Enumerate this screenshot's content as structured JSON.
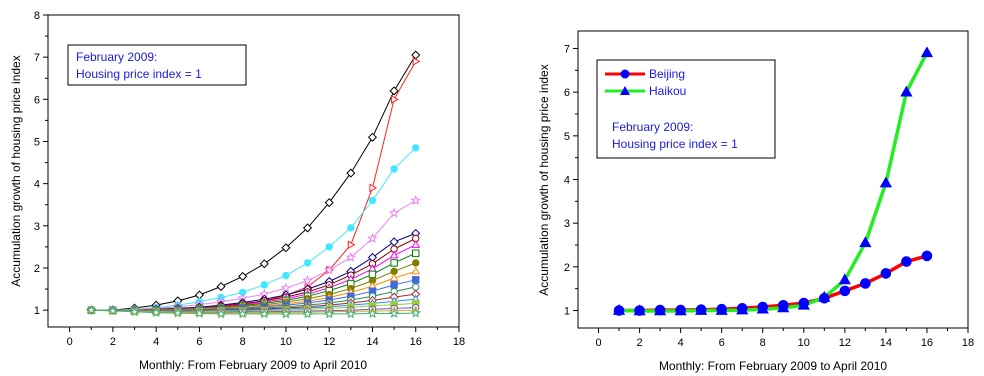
{
  "chart_data": [
    {
      "type": "line",
      "xlabel": "Monthly: From February 2009 to April 2010",
      "ylabel": "Accumulation growth of housing price index",
      "xlim": [
        -1,
        18
      ],
      "ylim": [
        0.6,
        8
      ],
      "xticks": [
        0,
        2,
        4,
        6,
        8,
        10,
        12,
        14,
        16,
        18
      ],
      "yticks": [
        1,
        2,
        3,
        4,
        5,
        6,
        7,
        8
      ],
      "annotation": [
        "February 2009:",
        "Housing price index = 1"
      ],
      "x": [
        1,
        2,
        3,
        4,
        5,
        6,
        7,
        8,
        9,
        10,
        11,
        12,
        13,
        14,
        15,
        16
      ],
      "series": [
        {
          "color": "#000000",
          "marker": "diamond",
          "values": [
            1,
            1,
            1.05,
            1.12,
            1.22,
            1.36,
            1.56,
            1.8,
            2.1,
            2.48,
            2.95,
            3.55,
            4.25,
            5.1,
            6.2,
            7.05
          ]
        },
        {
          "color": "#ff2020",
          "marker": "triangle-right",
          "values": [
            1,
            1,
            1,
            1.02,
            1.04,
            1.06,
            1.1,
            1.15,
            1.22,
            1.35,
            1.55,
            1.95,
            2.55,
            3.9,
            6.0,
            6.9
          ]
        },
        {
          "color": "#40e8ff",
          "marker": "circle",
          "values": [
            1,
            1,
            1.02,
            1.06,
            1.12,
            1.2,
            1.3,
            1.42,
            1.6,
            1.82,
            2.12,
            2.5,
            2.95,
            3.6,
            4.35,
            4.85
          ]
        },
        {
          "color": "#ee82ee",
          "marker": "star",
          "values": [
            1,
            1,
            1.01,
            1.04,
            1.08,
            1.13,
            1.2,
            1.28,
            1.38,
            1.52,
            1.7,
            1.95,
            2.25,
            2.7,
            3.3,
            3.6
          ]
        },
        {
          "color": "#000080",
          "marker": "diamond",
          "values": [
            1,
            1,
            1,
            1.02,
            1.04,
            1.07,
            1.12,
            1.18,
            1.26,
            1.36,
            1.5,
            1.68,
            1.92,
            2.25,
            2.62,
            2.82
          ]
        },
        {
          "color": "#8b0000",
          "marker": "circle",
          "values": [
            1,
            1,
            1,
            1.01,
            1.03,
            1.06,
            1.1,
            1.15,
            1.22,
            1.31,
            1.43,
            1.6,
            1.83,
            2.1,
            2.45,
            2.7
          ]
        },
        {
          "color": "#ff00ff",
          "marker": "triangle",
          "values": [
            1,
            1,
            1,
            1.01,
            1.02,
            1.05,
            1.08,
            1.13,
            1.19,
            1.27,
            1.38,
            1.53,
            1.73,
            1.98,
            2.3,
            2.55
          ]
        },
        {
          "color": "#008000",
          "marker": "square",
          "values": [
            1,
            1,
            1,
            1.01,
            1.02,
            1.04,
            1.07,
            1.11,
            1.16,
            1.23,
            1.33,
            1.46,
            1.63,
            1.85,
            2.12,
            2.35
          ]
        },
        {
          "color": "#808000",
          "marker": "circle",
          "values": [
            1,
            1,
            1,
            1,
            1.01,
            1.03,
            1.06,
            1.09,
            1.13,
            1.19,
            1.27,
            1.37,
            1.51,
            1.7,
            1.92,
            2.12
          ]
        },
        {
          "color": "#ff8c00",
          "marker": "triangle",
          "values": [
            1,
            1,
            1,
            1,
            1.01,
            1.02,
            1.04,
            1.07,
            1.1,
            1.15,
            1.21,
            1.3,
            1.42,
            1.57,
            1.76,
            1.92
          ]
        },
        {
          "color": "#4169e1",
          "marker": "square",
          "values": [
            1,
            1,
            0.99,
            0.99,
            1,
            1.01,
            1.03,
            1.05,
            1.08,
            1.12,
            1.17,
            1.24,
            1.33,
            1.45,
            1.6,
            1.72
          ]
        },
        {
          "color": "#2e8b57",
          "marker": "circle",
          "values": [
            1,
            1,
            0.99,
            0.99,
            0.99,
            1,
            1.01,
            1.03,
            1.05,
            1.08,
            1.12,
            1.17,
            1.24,
            1.33,
            1.44,
            1.55
          ]
        },
        {
          "color": "#a52a2a",
          "marker": "diamond",
          "values": [
            1,
            1,
            0.99,
            0.98,
            0.99,
            0.99,
            1,
            1.01,
            1.03,
            1.05,
            1.08,
            1.12,
            1.17,
            1.23,
            1.31,
            1.38
          ]
        },
        {
          "color": "#1e90ff",
          "marker": "triangle",
          "values": [
            1,
            1,
            0.99,
            0.98,
            0.98,
            0.98,
            0.99,
            1,
            1.01,
            1.03,
            1.05,
            1.08,
            1.12,
            1.16,
            1.21,
            1.26
          ]
        },
        {
          "color": "#9acd32",
          "marker": "square",
          "values": [
            1,
            0.99,
            0.98,
            0.97,
            0.97,
            0.97,
            0.98,
            0.98,
            0.99,
            1,
            1.02,
            1.04,
            1.07,
            1.1,
            1.13,
            1.16
          ]
        },
        {
          "color": "#6a5acd",
          "marker": "circle",
          "values": [
            1,
            0.99,
            0.98,
            0.96,
            0.96,
            0.95,
            0.95,
            0.96,
            0.96,
            0.97,
            0.98,
            0.99,
            1,
            1.02,
            1.04,
            1.06
          ]
        },
        {
          "color": "#daa520",
          "marker": "triangle",
          "values": [
            1,
            0.99,
            0.97,
            0.96,
            0.95,
            0.94,
            0.94,
            0.94,
            0.94,
            0.95,
            0.95,
            0.96,
            0.97,
            0.98,
            0.99,
            1.0
          ]
        },
        {
          "color": "#3cb371",
          "marker": "star",
          "values": [
            1,
            0.98,
            0.96,
            0.94,
            0.93,
            0.92,
            0.91,
            0.91,
            0.91,
            0.91,
            0.91,
            0.91,
            0.91,
            0.92,
            0.92,
            0.93
          ]
        }
      ]
    },
    {
      "type": "line",
      "xlabel": "Monthly: From February 2009 to April 2010",
      "ylabel": "Accumulation growth of housing price index",
      "xlim": [
        -1,
        18
      ],
      "ylim": [
        0.6,
        7.4
      ],
      "xticks": [
        0,
        2,
        4,
        6,
        8,
        10,
        12,
        14,
        16,
        18
      ],
      "yticks": [
        1,
        2,
        3,
        4,
        5,
        6,
        7
      ],
      "annotation": [
        "February 2009:",
        "Housing price index = 1"
      ],
      "x": [
        1,
        2,
        3,
        4,
        5,
        6,
        7,
        8,
        9,
        10,
        11,
        12,
        13,
        14,
        15,
        16
      ],
      "series": [
        {
          "name": "Beijing",
          "color": "#ff0000",
          "marker": "circle",
          "marker_color": "#0000ff",
          "values": [
            1,
            1,
            1.01,
            1.01,
            1.02,
            1.03,
            1.05,
            1.08,
            1.12,
            1.17,
            1.28,
            1.45,
            1.62,
            1.85,
            2.12,
            2.25
          ]
        },
        {
          "name": "Haikou",
          "color": "#22ee22",
          "marker": "triangle",
          "marker_color": "#0000ff",
          "values": [
            1,
            0.99,
            0.99,
            0.99,
            1,
            1,
            1.01,
            1.03,
            1.06,
            1.12,
            1.3,
            1.7,
            2.55,
            3.92,
            6.0,
            6.9
          ]
        }
      ]
    }
  ]
}
